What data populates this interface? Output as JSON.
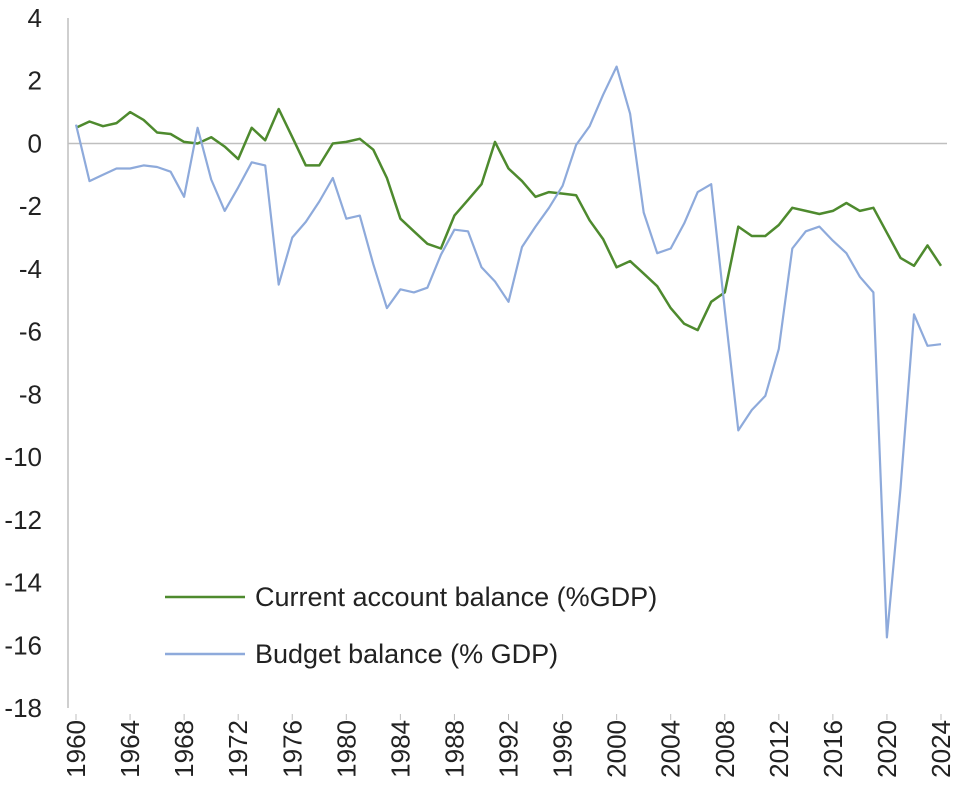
{
  "chart_data": {
    "type": "line",
    "title": "",
    "xlabel": "",
    "ylabel": "",
    "ylim": [
      -18,
      4
    ],
    "xlim": [
      1960,
      2024
    ],
    "y_ticks": [
      "4",
      "2",
      "0",
      "-2",
      "-4",
      "-6",
      "-8",
      "-10",
      "-12",
      "-14",
      "-16",
      "-18"
    ],
    "x_ticks": [
      "1960",
      "1964",
      "1968",
      "1972",
      "1976",
      "1980",
      "1984",
      "1988",
      "1992",
      "1996",
      "2000",
      "2004",
      "2008",
      "2012",
      "2016",
      "2020",
      "2024"
    ],
    "grid": false,
    "legend_position": "bottom-left",
    "x": [
      1960,
      1961,
      1962,
      1963,
      1964,
      1965,
      1966,
      1967,
      1968,
      1969,
      1970,
      1971,
      1972,
      1973,
      1974,
      1975,
      1976,
      1977,
      1978,
      1979,
      1980,
      1981,
      1982,
      1983,
      1984,
      1985,
      1986,
      1987,
      1988,
      1989,
      1990,
      1991,
      1992,
      1993,
      1994,
      1995,
      1996,
      1997,
      1998,
      1999,
      2000,
      2001,
      2002,
      2003,
      2004,
      2005,
      2006,
      2007,
      2008,
      2009,
      2010,
      2011,
      2012,
      2013,
      2014,
      2015,
      2016,
      2017,
      2018,
      2019,
      2020,
      2021,
      2022,
      2023,
      2024
    ],
    "series": [
      {
        "name": "Current account balance (%GDP)",
        "color": "#4e8a2e",
        "values": [
          0.5,
          0.7,
          0.55,
          0.65,
          1.0,
          0.75,
          0.35,
          0.3,
          0.05,
          0.0,
          0.2,
          -0.1,
          -0.5,
          0.5,
          0.1,
          1.1,
          0.2,
          -0.7,
          -0.7,
          0.0,
          0.05,
          0.15,
          -0.2,
          -1.1,
          -2.4,
          -2.8,
          -3.2,
          -3.35,
          -2.3,
          -1.8,
          -1.3,
          0.05,
          -0.8,
          -1.2,
          -1.7,
          -1.55,
          -1.6,
          -1.65,
          -2.45,
          -3.05,
          -3.95,
          -3.75,
          -4.15,
          -4.55,
          -5.25,
          -5.75,
          -5.95,
          -5.05,
          -4.75,
          -2.65,
          -2.95,
          -2.95,
          -2.6,
          -2.05,
          -2.15,
          -2.25,
          -2.15,
          -1.9,
          -2.15,
          -2.05,
          -2.85,
          -3.65,
          -3.9,
          -3.25,
          -3.9
        ]
      },
      {
        "name": "Budget balance (% GDP)",
        "color": "#8eaadb",
        "values": [
          0.6,
          -1.2,
          -1.0,
          -0.8,
          -0.8,
          -0.7,
          -0.75,
          -0.9,
          -1.7,
          0.5,
          -1.15,
          -2.15,
          -1.4,
          -0.6,
          -0.7,
          -4.5,
          -3.0,
          -2.5,
          -1.85,
          -1.1,
          -2.4,
          -2.3,
          -3.85,
          -5.25,
          -4.65,
          -4.75,
          -4.6,
          -3.55,
          -2.75,
          -2.8,
          -3.95,
          -4.4,
          -5.05,
          -3.3,
          -2.65,
          -2.05,
          -1.35,
          -0.05,
          0.55,
          1.55,
          2.45,
          0.95,
          -2.2,
          -3.5,
          -3.35,
          -2.55,
          -1.55,
          -1.3,
          -5.3,
          -9.15,
          -8.5,
          -8.05,
          -6.55,
          -3.35,
          -2.8,
          -2.65,
          -3.1,
          -3.5,
          -4.25,
          -4.75,
          -15.75,
          -11.0,
          -5.45,
          -6.45,
          -6.4
        ]
      }
    ]
  }
}
